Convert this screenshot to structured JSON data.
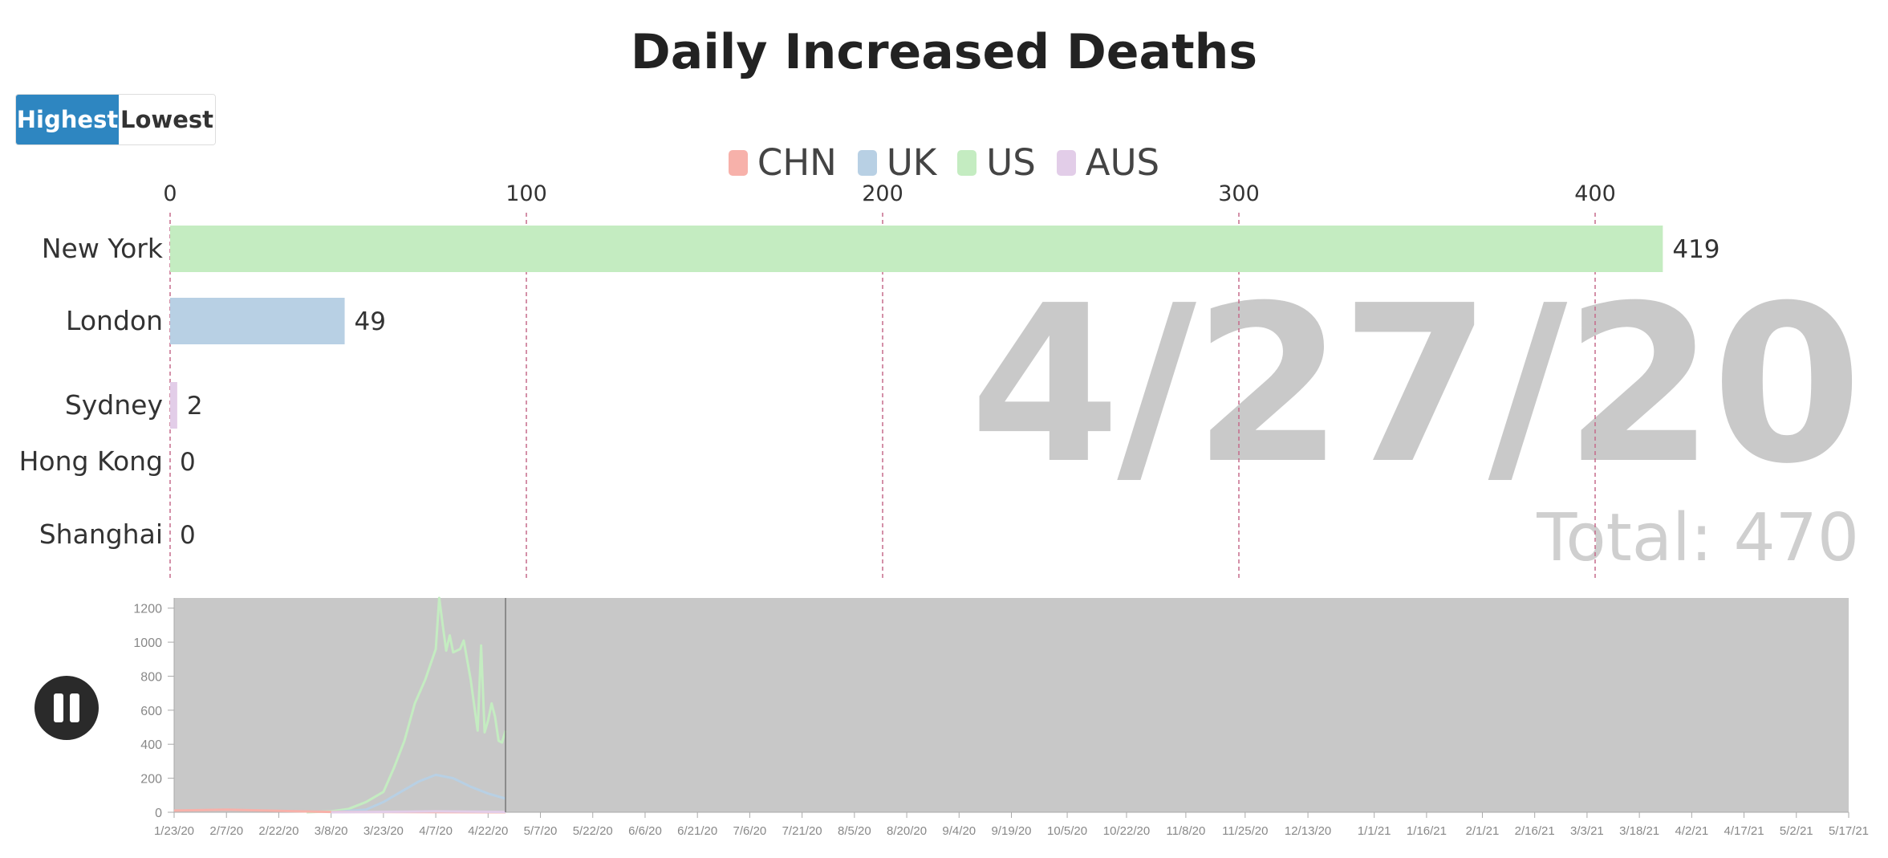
{
  "title": "Daily Increased Deaths",
  "toggle": {
    "highest_label": "Highest",
    "lowest_label": "Lowest",
    "active": "Highest"
  },
  "date_label": "4/27/20",
  "total_label": "Total: 470",
  "colors": {
    "CHN": "#f7b1aa",
    "UK": "#b8d0e4",
    "US": "#c4ecc1",
    "AUS": "#e2cde8",
    "grid": "#c66b8b",
    "mini_bg": "#c8c8c8"
  },
  "chart_data": [
    {
      "type": "bar",
      "orientation": "horizontal",
      "title": "Daily Increased Deaths",
      "legend": [
        "CHN",
        "UK",
        "US",
        "AUS"
      ],
      "legend_placement": "top",
      "xlim": [
        0,
        420
      ],
      "x_ticks": [
        0,
        100,
        200,
        300,
        400
      ],
      "grid": true,
      "categories": [
        "New York",
        "London",
        "Sydney",
        "Hong Kong",
        "Shanghai"
      ],
      "groups": [
        "US",
        "UK",
        "AUS",
        "CHN",
        "CHN"
      ],
      "values": [
        419,
        49,
        2,
        0,
        0
      ]
    },
    {
      "type": "line",
      "title": "",
      "ylim": [
        0,
        1260
      ],
      "y_ticks": [
        0,
        200,
        400,
        600,
        800,
        1000,
        1200
      ],
      "x_ticks": [
        "1/23/20",
        "2/7/20",
        "2/22/20",
        "3/8/20",
        "3/23/20",
        "4/7/20",
        "4/22/20",
        "5/7/20",
        "5/22/20",
        "6/6/20",
        "6/21/20",
        "7/6/20",
        "7/21/20",
        "8/5/20",
        "8/20/20",
        "9/4/20",
        "9/19/20",
        "10/5/20",
        "10/22/20",
        "11/8/20",
        "11/25/20",
        "12/13/20",
        "1/1/21",
        "1/16/21",
        "2/1/21",
        "2/16/21",
        "3/3/21",
        "3/18/21",
        "4/2/21",
        "4/17/21",
        "5/2/21",
        "5/17/21"
      ],
      "current_date": "4/27/20",
      "series": [
        {
          "name": "US",
          "x": [
            "3/1/20",
            "3/8/20",
            "3/13/20",
            "3/18/20",
            "3/23/20",
            "3/26/20",
            "3/29/20",
            "4/1/20",
            "4/4/20",
            "4/7/20",
            "4/8/20",
            "4/9/20",
            "4/10/20",
            "4/11/20",
            "4/12/20",
            "4/14/20",
            "4/15/20",
            "4/17/20",
            "4/19/20",
            "4/20/20",
            "4/21/20",
            "4/22/20",
            "4/23/20",
            "4/24/20",
            "4/25/20",
            "4/26/20",
            "4/27/20"
          ],
          "y": [
            0,
            5,
            20,
            60,
            120,
            260,
            420,
            640,
            780,
            960,
            1260,
            1100,
            950,
            1040,
            940,
            960,
            1010,
            780,
            480,
            980,
            470,
            540,
            640,
            560,
            420,
            410,
            480
          ]
        },
        {
          "name": "UK",
          "x": [
            "3/8/20",
            "3/18/20",
            "3/23/20",
            "3/28/20",
            "4/2/20",
            "4/7/20",
            "4/12/20",
            "4/17/20",
            "4/22/20",
            "4/27/20"
          ],
          "y": [
            0,
            15,
            60,
            120,
            180,
            220,
            200,
            150,
            110,
            80
          ]
        },
        {
          "name": "CHN",
          "x": [
            "1/23/20",
            "2/7/20",
            "2/22/20",
            "3/8/20",
            "4/27/20"
          ],
          "y": [
            10,
            15,
            8,
            2,
            0
          ]
        },
        {
          "name": "AUS",
          "x": [
            "3/8/20",
            "4/7/20",
            "4/27/20"
          ],
          "y": [
            0,
            5,
            2
          ]
        }
      ]
    }
  ]
}
